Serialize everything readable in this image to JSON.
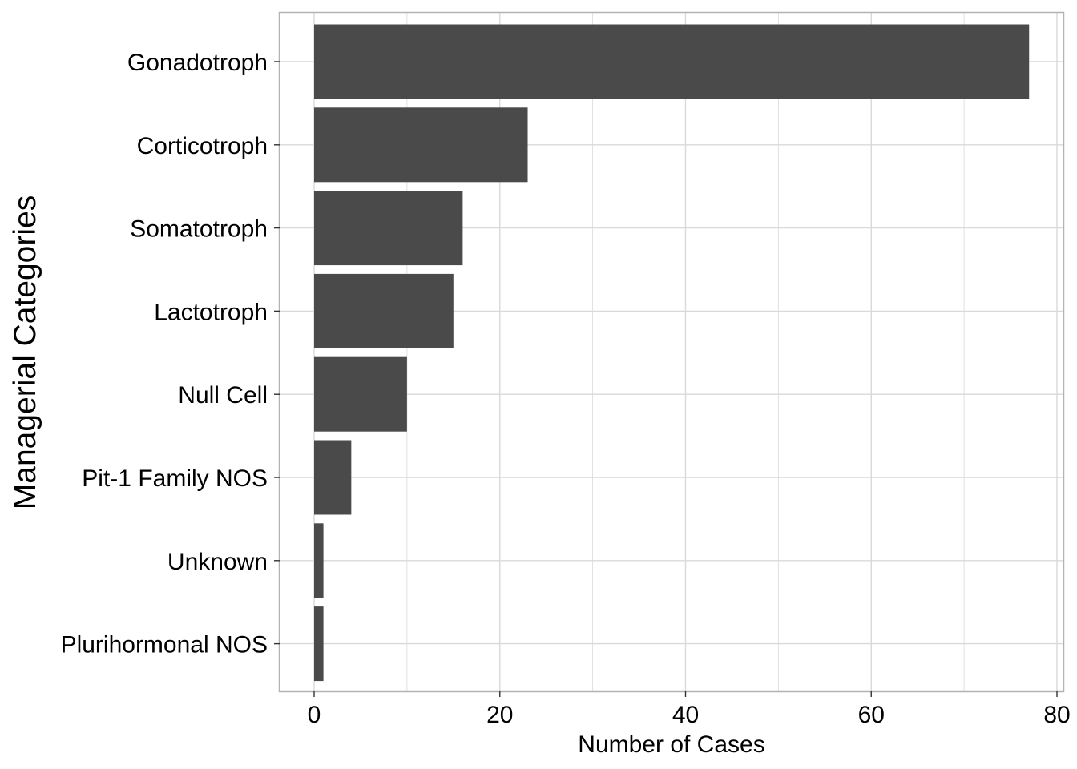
{
  "chart_data": {
    "type": "bar",
    "orientation": "horizontal",
    "categories": [
      "Gonadotroph",
      "Corticotroph",
      "Somatotroph",
      "Lactotroph",
      "Null Cell",
      "Pit-1 Family NOS",
      "Unknown",
      "Plurihormonal NOS"
    ],
    "values": [
      77,
      23,
      16,
      15,
      10,
      4,
      1,
      1
    ],
    "title": "",
    "xlabel": "Number of Cases",
    "ylabel": "Managerial Categories",
    "xlim": [
      0,
      80
    ],
    "x_ticks": [
      "0",
      "20",
      "40",
      "60",
      "80"
    ],
    "grid": true,
    "legend": "none",
    "bar_color": "#4a4a4a",
    "grid_color": "#d9d9d9",
    "panel_border_color": "#b3b3b3"
  }
}
